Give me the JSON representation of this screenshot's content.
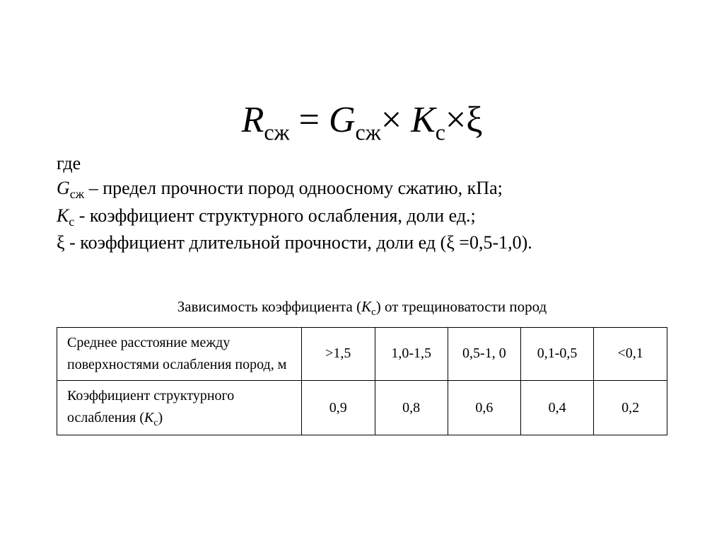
{
  "formula": {
    "R": "R",
    "R_sub": "сж",
    "eq": " = ",
    "G": "G",
    "G_sub": "сж",
    "times1": "× ",
    "K": "К",
    "K_sub": "с",
    "times2": "×",
    "xi": "ξ"
  },
  "legend": {
    "where": "где",
    "g_sym": "G",
    "g_sub": "сж",
    "g_text": " – предел прочности пород одноосному сжатию, кПа;",
    "k_sym": "К",
    "k_sub": "с",
    "k_text": " - коэффициент структурного ослабления, доли ед.;",
    "xi_sym": "ξ",
    "xi_text": " - коэффициент длительной прочности, доли ед (ξ =0,5-1,0)."
  },
  "table": {
    "caption_pre": "Зависимость коэффициента (",
    "caption_sym": "К",
    "caption_sub": "с",
    "caption_post": ") от трещиноватости пород",
    "row1_label": "Среднее расстояние между поверхностями ослабления пород, м",
    "row1": [
      ">1,5",
      "1,0-1,5",
      "0,5-1, 0",
      "0,1-0,5",
      "<0,1"
    ],
    "row2_label_pre": "Коэффициент структурного ослабления   (",
    "row2_label_sym": "К",
    "row2_label_sub": "с",
    "row2_label_post": ")",
    "row2": [
      "0,9",
      "0,8",
      "0,6",
      "0,4",
      "0,2"
    ]
  },
  "style": {
    "body_font": "Times New Roman",
    "text_color": "#000000",
    "bg_color": "#ffffff",
    "formula_fontsize": 52,
    "legend_fontsize": 26,
    "caption_fontsize": 21,
    "table_fontsize": 20,
    "border_color": "#000000"
  }
}
